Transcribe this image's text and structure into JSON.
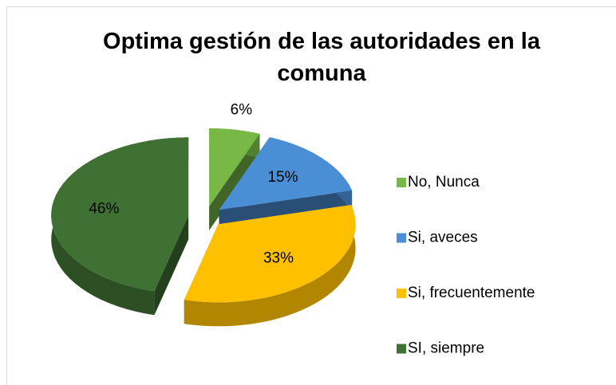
{
  "chart_data": {
    "type": "pie",
    "title": "Optima gestión de las autoridades en la comuna",
    "categories": [
      "No, Nunca",
      "Si, aveces",
      "Si, frecuentemente",
      "SI, siempre"
    ],
    "values": [
      6,
      15,
      33,
      46
    ],
    "value_labels": [
      "6%",
      "15%",
      "33%",
      "46%"
    ],
    "colors": [
      "#77b847",
      "#4a8fd6",
      "#ffc000",
      "#3f7232"
    ],
    "legend": "right"
  }
}
